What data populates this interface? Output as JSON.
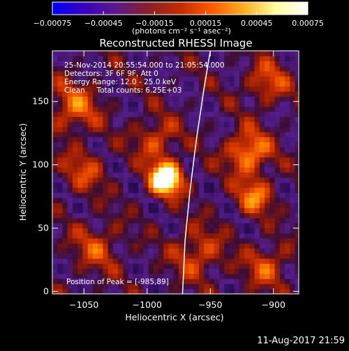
{
  "chart_data": {
    "type": "heatmap",
    "title": "Reconstructed RHESSI Image",
    "xlabel": "Heliocentric X (arcsec)",
    "ylabel": "Heliocentric Y (arcsec)",
    "xlim": [
      -1075,
      -880
    ],
    "ylim": [
      -2,
      190
    ],
    "xticks": [
      -1050,
      -1000,
      -950,
      -900
    ],
    "xtick_labels": [
      "−1050",
      "−1000",
      "−950",
      "−900"
    ],
    "yticks": [
      0,
      50,
      100,
      150
    ],
    "ytick_labels": [
      "0",
      "50",
      "100",
      "150"
    ],
    "colorbar": {
      "min": -0.00075,
      "max": 0.00075,
      "ticks": [
        -0.00075,
        -0.00045,
        -0.00015,
        0.00015,
        0.00045,
        0.00075
      ],
      "tick_labels": [
        "−0.00075",
        "−0.00045",
        "−0.00015",
        "0.00015",
        "0.00045",
        "0.00075"
      ],
      "unit_label": "(photons cm⁻² s⁻¹ asec⁻²)",
      "colors": [
        "#0000ff",
        "#3a00c0",
        "#5a1a8a",
        "#8a1f2a",
        "#c42a00",
        "#ff5a00",
        "#ffae20",
        "#ffffa0",
        "#ffffff"
      ]
    },
    "annotations": {
      "time": "25-Nov-2014 20:55:54.000 to 21:05:54.000",
      "detectors": "Detectors: 3F 6F 9F, Att 0",
      "energy": "Energy Range: 12.0 - 25.0 keV",
      "clean": "Clean     Total counts: 6.25E+03",
      "peak": "Position of Peak = [-985,89]"
    },
    "peak": {
      "x": -985,
      "y": 89
    },
    "limb": [
      [
        -972,
        -2
      ],
      [
        -970,
        40
      ],
      [
        -966,
        80
      ],
      [
        -961,
        120
      ],
      [
        -955,
        160
      ],
      [
        -950,
        190
      ]
    ],
    "sources": [
      {
        "x": -985,
        "y": 89,
        "amp": 1.0,
        "sigma": 9
      },
      {
        "x": -993,
        "y": 120,
        "amp": 0.35,
        "sigma": 12
      },
      {
        "x": -920,
        "y": 110,
        "amp": 0.55,
        "sigma": 12
      },
      {
        "x": -915,
        "y": 75,
        "amp": 0.45,
        "sigma": 10
      },
      {
        "x": -1058,
        "y": 145,
        "amp": 0.4,
        "sigma": 14
      },
      {
        "x": -1050,
        "y": 95,
        "amp": 0.3,
        "sigma": 12
      },
      {
        "x": -960,
        "y": 30,
        "amp": 0.35,
        "sigma": 14
      },
      {
        "x": -905,
        "y": 165,
        "amp": 0.35,
        "sigma": 12
      },
      {
        "x": -1040,
        "y": 35,
        "amp": 0.3,
        "sigma": 14
      },
      {
        "x": -905,
        "y": 20,
        "amp": 0.35,
        "sigma": 12
      }
    ],
    "grid": false
  },
  "footer": {
    "timestamp": "11-Aug-2017 21:59"
  }
}
